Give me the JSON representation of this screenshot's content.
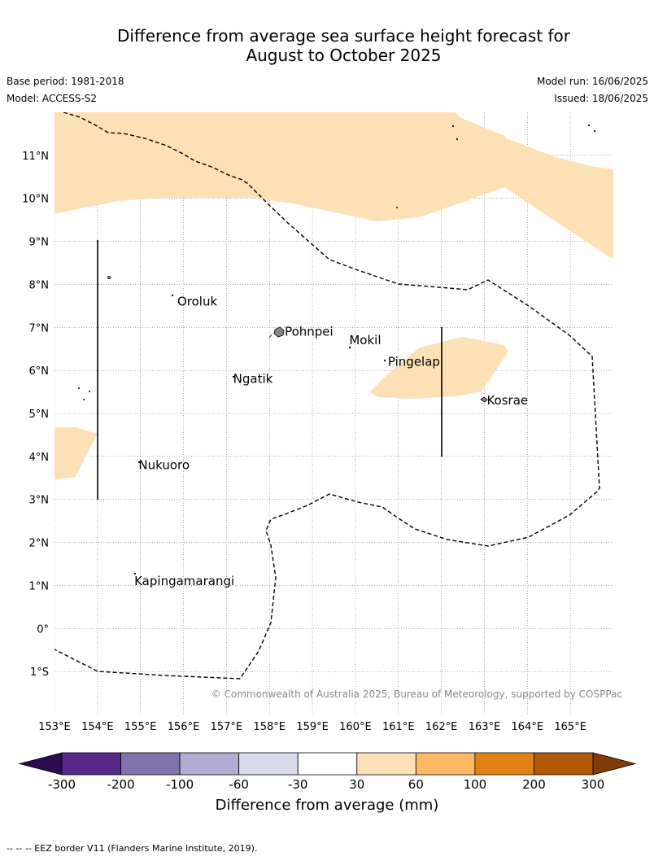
{
  "title": {
    "line1": "Difference from average sea surface height forecast for",
    "line2": "August to October 2025"
  },
  "meta": {
    "base_period": "Base period: 1981-2018",
    "model": "Model: ACCESS-S2",
    "model_run": "Model run: 16/06/2025",
    "issued": "Issued: 18/06/2025"
  },
  "map": {
    "lon_range": [
      153,
      166
    ],
    "lat_range": [
      -2,
      12
    ],
    "lon_ticks": [
      "153°E",
      "154°E",
      "155°E",
      "156°E",
      "157°E",
      "158°E",
      "159°E",
      "160°E",
      "161°E",
      "162°E",
      "163°E",
      "164°E",
      "165°E"
    ],
    "lat_ticks": [
      "11°N",
      "10°N",
      "9°N",
      "8°N",
      "7°N",
      "6°N",
      "5°N",
      "4°N",
      "3°N",
      "2°N",
      "1°N",
      "0°",
      "1°S"
    ],
    "grid": true,
    "places": [
      {
        "name": "Oroluk",
        "lon": 155.8,
        "lat": 7.6
      },
      {
        "name": "Pohnpei",
        "lon": 158.3,
        "lat": 6.9
      },
      {
        "name": "Mokil",
        "lon": 159.8,
        "lat": 6.7
      },
      {
        "name": "Pingelap",
        "lon": 160.7,
        "lat": 6.2
      },
      {
        "name": "Ngatik",
        "lon": 157.1,
        "lat": 5.8
      },
      {
        "name": "Kosrae",
        "lon": 163.0,
        "lat": 5.3
      },
      {
        "name": "Nukuoro",
        "lon": 154.9,
        "lat": 3.8
      },
      {
        "name": "Kapingamarangi",
        "lon": 154.8,
        "lat": 1.1
      }
    ],
    "anomaly_color": "#fde0b5",
    "copyright": "© Commonwealth of Australia 2025, Bureau of Meteorology, supported by COSPPac"
  },
  "colorbar": {
    "ticks": [
      "-300",
      "-200",
      "-100",
      "-60",
      "-30",
      "30",
      "60",
      "100",
      "200",
      "300"
    ],
    "colors": [
      "#2d0b4f",
      "#542788",
      "#8073ac",
      "#b2abd2",
      "#d8daeb",
      "#ffffff",
      "#fee0b6",
      "#fdb863",
      "#e08214",
      "#b35806",
      "#7f3b08"
    ],
    "label": "Difference from average (mm)"
  },
  "footnote": "-- -- -- EEZ border V11 (Flanders Marine Institute, 2019)."
}
